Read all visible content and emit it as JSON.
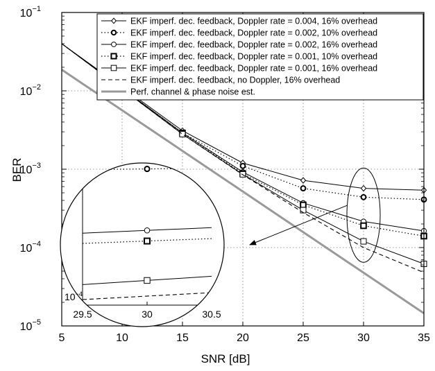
{
  "chart_data": {
    "type": "line",
    "xlabel": "SNR [dB]",
    "ylabel": "BER",
    "xlim": [
      5,
      35
    ],
    "ylim": [
      1e-05,
      0.1
    ],
    "yscale": "log",
    "grid": true,
    "legend_position": "top-right",
    "x_ticks": [
      "5",
      "10",
      "15",
      "20",
      "25",
      "30",
      "35"
    ],
    "y_ticks": [
      {
        "base": "10",
        "exp": "−5"
      },
      {
        "base": "10",
        "exp": "−4"
      },
      {
        "base": "10",
        "exp": "−3"
      },
      {
        "base": "10",
        "exp": "−2"
      },
      {
        "base": "10",
        "exp": "−1"
      }
    ],
    "series": [
      {
        "name": "EKF imperf. dec. feedback, Doppler rate = 0.004, 16% overhead",
        "style": "solid",
        "marker": "diamond",
        "color": "#000000",
        "x": [
          5,
          15,
          20,
          25,
          30,
          35
        ],
        "y": [
          0.04,
          0.0031,
          0.0012,
          0.00072,
          0.00057,
          0.00054
        ]
      },
      {
        "name": "EKF imperf. dec. feedback, Doppler rate = 0.002, 10% overhead",
        "style": "dotted",
        "marker": "circle-bold",
        "color": "#000000",
        "x": [
          5,
          15,
          20,
          25,
          30,
          35
        ],
        "y": [
          0.04,
          0.0029,
          0.0011,
          0.00057,
          0.00044,
          0.00041
        ]
      },
      {
        "name": "EKF imperf. dec. feedback, Doppler rate = 0.002, 16% overhead",
        "style": "solid",
        "marker": "circle",
        "color": "#000000",
        "x": [
          5,
          15,
          20,
          25,
          30,
          35
        ],
        "y": [
          0.04,
          0.0029,
          0.00092,
          0.00037,
          0.000215,
          0.000163
        ]
      },
      {
        "name": "EKF imperf. dec. feedback, Doppler rate = 0.001, 10% overhead",
        "style": "dotted",
        "marker": "square-bold",
        "color": "#000000",
        "x": [
          5,
          15,
          20,
          25,
          30,
          35
        ],
        "y": [
          0.04,
          0.0029,
          0.00088,
          0.00035,
          0.00019,
          0.00014
        ]
      },
      {
        "name": "EKF imperf. dec. feedback, Doppler rate = 0.001, 16% overhead",
        "style": "solid",
        "marker": "square",
        "color": "#000000",
        "x": [
          5,
          15,
          20,
          25,
          30,
          35
        ],
        "y": [
          0.04,
          0.0028,
          0.00086,
          0.0003,
          0.00012,
          6.2e-05
        ]
      },
      {
        "name": "EKF imperf. dec. feedback, no Doppler, 16% overhead",
        "style": "dashed",
        "marker": "none",
        "color": "#000000",
        "x": [
          5,
          15,
          20,
          25,
          30,
          35
        ],
        "y": [
          0.04,
          0.0028,
          0.00085,
          0.00028,
          0.0001,
          4.8e-05
        ]
      },
      {
        "name": "Perf. channel & phase noise est.",
        "style": "thick",
        "marker": "none",
        "color": "#999999",
        "x": [
          5,
          35
        ],
        "y": [
          0.0186,
          1.45e-05
        ]
      }
    ],
    "inset": {
      "x_ticks": [
        "29.5",
        "30",
        "30.5"
      ],
      "y_tick": {
        "base": "10",
        "exp": "−4"
      },
      "series_y_at_30": [
        0.00057,
        0.00044,
        0.000215,
        0.00019,
        0.00012,
        0.0001
      ]
    }
  }
}
